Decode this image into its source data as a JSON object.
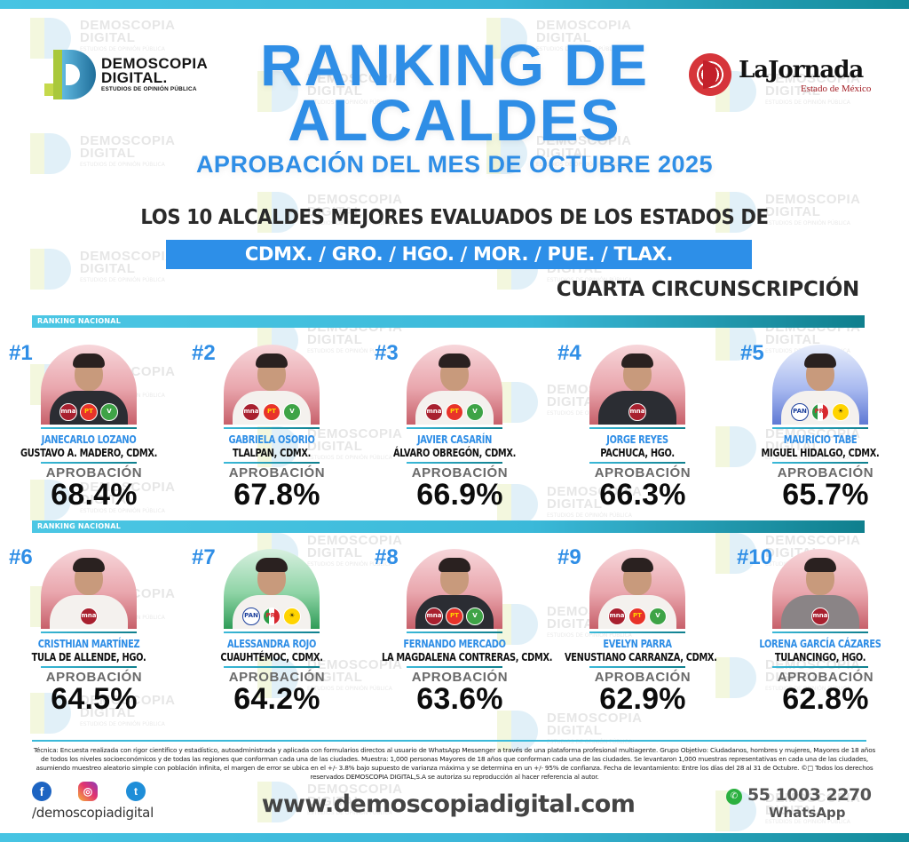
{
  "header": {
    "logo_left": {
      "line1": "DEMOSCOPIA",
      "line2": "DIGITAL.",
      "line3": "ESTUDIOS DE OPINIÓN PÚBLICA"
    },
    "logo_right": {
      "name": "LaJornada",
      "sub": "Estado de México"
    },
    "title_line1": "RANKING DE",
    "title_line2": "ALCALDES",
    "title_line3": "APROBACIÓN DEL MES DE OCTUBRE 2025",
    "subtitle": "LOS 10 ALCALDES MEJORES EVALUADOS DE LOS ESTADOS DE",
    "states": "CDMX. /  GRO.  /  HGO.  /  MOR.  /  PUE.  /  TLAX.",
    "circumscription": "CUARTA CIRCUNSCRIPCIÓN"
  },
  "watermark": {
    "line1": "DEMOSCOPIA",
    "line2": "DIGITAL",
    "line3": "ESTUDIOS DE OPINIÓN PÚBLICA"
  },
  "band_label": "RANKING NACIONAL",
  "approval_label": "APROBACIÓN",
  "mayors": [
    {
      "rank": "#1",
      "name": "JANECARLO LOZANO",
      "place": "GUSTAVO A. MADERO, CDMX.",
      "approval": "68.4%",
      "theme": "morena",
      "body": "dark",
      "badges": [
        "morena",
        "pt",
        "verde"
      ]
    },
    {
      "rank": "#2",
      "name": "GABRIELA OSORIO",
      "place": "TLALPAN, CDMX.",
      "approval": "67.8%",
      "theme": "morena",
      "body": "white",
      "badges": [
        "morena",
        "pt",
        "verde"
      ]
    },
    {
      "rank": "#3",
      "name": "JAVIER CASARÍN",
      "place": "ÁLVARO OBREGÓN, CDMX.",
      "approval": "66.9%",
      "theme": "morena",
      "body": "white",
      "badges": [
        "morena",
        "pt",
        "verde"
      ]
    },
    {
      "rank": "#4",
      "name": "JORGE REYES",
      "place": "PACHUCA, HGO.",
      "approval": "66.3%",
      "theme": "morena",
      "body": "dark",
      "badges": [
        "morena"
      ]
    },
    {
      "rank": "#5",
      "name": "MAURICIO TABE",
      "place": "MIGUEL HIDALGO, CDMX.",
      "approval": "65.7%",
      "theme": "pan",
      "body": "white",
      "badges": [
        "pan",
        "pri",
        "prd"
      ]
    },
    {
      "rank": "#6",
      "name": "CRISTHIAN MARTÍNEZ",
      "place": "TULA DE ALLENDE, HGO.",
      "approval": "64.5%",
      "theme": "morena",
      "body": "white",
      "badges": [
        "morena"
      ]
    },
    {
      "rank": "#7",
      "name": "ALESSANDRA ROJO",
      "place": "CUAUHTÉMOC, CDMX.",
      "approval": "64.2%",
      "theme": "green",
      "body": "white",
      "badges": [
        "pan",
        "pri",
        "prd"
      ]
    },
    {
      "rank": "#8",
      "name": "FERNANDO MERCADO",
      "place": "LA MAGDALENA CONTRERAS, CDMX.",
      "approval": "63.6%",
      "theme": "morena",
      "body": "dark",
      "badges": [
        "morena",
        "pt",
        "verde"
      ]
    },
    {
      "rank": "#9",
      "name": "EVELYN PARRA",
      "place": "VENUSTIANO CARRANZA, CDMX.",
      "approval": "62.9%",
      "theme": "morena",
      "body": "white",
      "badges": [
        "morena",
        "pt",
        "verde"
      ]
    },
    {
      "rank": "#10",
      "name": "LORENA GARCÍA CÁZARES",
      "place": "TULANCINGO, HGO.",
      "approval": "62.8%",
      "theme": "morena",
      "body": "grey",
      "badges": [
        "morena"
      ]
    }
  ],
  "badge_labels": {
    "morena": "mna",
    "pt": "PT",
    "verde": "V",
    "pan": "PAN",
    "pri": "PRI",
    "prd": "☀"
  },
  "footer": {
    "technical_note": "Técnica: Encuesta realizada con rigor científico y estadístico, autoadministrada y aplicada con formularios directos al usuario de WhatsApp Messenger a través de una plataforma profesional multiagente. Grupo Objetivo: Ciudadanos, hombres y mujeres, Mayores de 18 años de todos los niveles socioeconómicos y de todas las regiones que conforman cada una de las ciudades. Muestra: 1,000 personas Mayores de 18 años que conforman cada una de las ciudades. Se levantaron 1,000 muestras representativas en cada una de las ciudades, asumiendo muestreo aleatorio simple con población infinita, el margen de error se ubica en el +/- 3.8% bajo supuesto de varianza máxima y se determina en un +/- 95% de confianza. Fecha de levantamiento: Entre los días del 28 al 31 de Octubre. ©□ Todos los derechos reservados DEMOSCOPIA DIGITAL,S.A se autoriza su reproducción al hacer referencia al autor.",
    "social_handle": "/demoscopiadigital",
    "social_icons": {
      "facebook": "f",
      "instagram": "◎",
      "twitter": "t"
    },
    "website": "www.demoscopiadigital.com",
    "phone": "55 1003 2270",
    "phone_label": "WhatsApp",
    "whatsapp_icon": "✆"
  },
  "colors": {
    "accent_blue": "#2f8ee6",
    "band_teal": "#3bb9d9",
    "dark_teal": "#0f7f8d",
    "morena": "#a8202f"
  }
}
